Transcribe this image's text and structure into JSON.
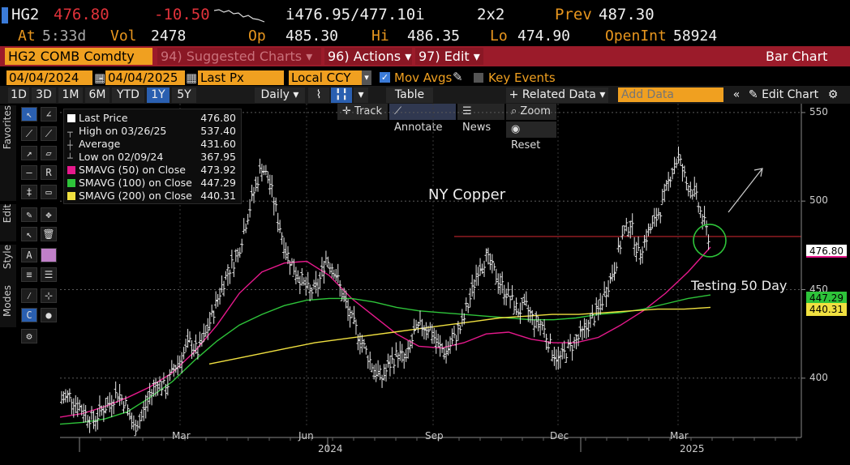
{
  "quote": {
    "ticker": "HG2",
    "last": "476.80",
    "change": "-10.50",
    "bid_ask": "i476.95/477.10i",
    "size": "2x2",
    "prev_label": "Prev",
    "prev": "487.30",
    "at_label": "At",
    "time": "5:33d",
    "vol_label": "Vol",
    "vol": "2478",
    "op_label": "Op",
    "open": "485.30",
    "hi_label": "Hi",
    "high": "486.35",
    "lo_label": "Lo",
    "low": "474.90",
    "oi_label": "OpenInt",
    "oi": "58924"
  },
  "function_bar": {
    "security": "HG2 COMB Comdty",
    "suggested": "94) Suggested Charts",
    "actions": "96) Actions",
    "edit": "97) Edit",
    "title": "Bar Chart"
  },
  "date_row": {
    "start": "04/04/2024",
    "end": "04/04/2025",
    "field": "Last Px",
    "currency": "Local CCY",
    "mov_avgs": "Mov Avgs",
    "key_events": "Key Events"
  },
  "tool_row": {
    "periods": [
      "1D",
      "3D",
      "1M",
      "6M",
      "YTD",
      "1Y",
      "5Y"
    ],
    "active_period": "1Y",
    "frequency": "Daily",
    "table": "Table",
    "related": "+ Related Data",
    "add_data_placeholder": "Add Data",
    "edit_chart": "Edit Chart"
  },
  "chart_tools": {
    "track": "Track",
    "annotate": "Annotate",
    "news": "News",
    "zoom": "Zoom",
    "reset": "Reset"
  },
  "palette_tabs": [
    "Favorites",
    "Edit",
    "Style",
    "Modes"
  ],
  "legend": [
    {
      "label": "Last Price",
      "value": "476.80",
      "color": "#ffffff"
    },
    {
      "label": "High on 03/26/25",
      "value": "537.40",
      "color": ""
    },
    {
      "label": "Average",
      "value": "431.60",
      "color": ""
    },
    {
      "label": "Low on 02/09/24",
      "value": "367.95",
      "color": ""
    },
    {
      "label": "SMAVG (50)  on Close",
      "value": "473.92",
      "color": "#e6198c"
    },
    {
      "label": "SMAVG (100)  on Close",
      "value": "447.29",
      "color": "#2ec43a"
    },
    {
      "label": "SMAVG (200)  on Close",
      "value": "440.31",
      "color": "#f0e040"
    }
  ],
  "annotations": {
    "title": "NY Copper",
    "note": "Testing 50 Day"
  },
  "chart_data": {
    "type": "bar",
    "x_labels": [
      "Mar",
      "Jun",
      "Sep",
      "Dec",
      "Mar"
    ],
    "x_year_labels": [
      "2024",
      "2025"
    ],
    "y_ticks": [
      400,
      450,
      500,
      550
    ],
    "ylim": [
      372,
      555
    ],
    "last_price": 476.8,
    "series": [
      {
        "name": "Last Price",
        "kind": "ohlc",
        "values": [
          388,
          390,
          385,
          380,
          376,
          382,
          386,
          392,
          385,
          372,
          378,
          390,
          398,
          394,
          405,
          412,
          420,
          415,
          425,
          438,
          452,
          462,
          470,
          488,
          505,
          520,
          510,
          490,
          472,
          462,
          455,
          448,
          452,
          468,
          462,
          448,
          435,
          425,
          415,
          405,
          400,
          408,
          414,
          410,
          425,
          430,
          428,
          418,
          415,
          422,
          430,
          445,
          462,
          468,
          460,
          452,
          445,
          438,
          440,
          432,
          430,
          418,
          410,
          415,
          420,
          425,
          432,
          438,
          450,
          462,
          480,
          488,
          470,
          480,
          488,
          498,
          515,
          525,
          510,
          505,
          490,
          476.8
        ]
      },
      {
        "name": "SMAVG (50)",
        "kind": "line",
        "color": "#e6198c",
        "values": [
          378,
          380,
          384,
          389,
          395,
          403,
          415,
          430,
          448,
          460,
          465,
          466,
          458,
          445,
          435,
          425,
          418,
          417,
          420,
          425,
          426,
          422,
          420,
          420,
          423,
          430,
          438,
          448,
          460,
          474
        ]
      },
      {
        "name": "SMAVG (100)",
        "kind": "line",
        "color": "#2ec43a",
        "values": [
          374,
          375,
          377,
          381,
          389,
          398,
          410,
          421,
          430,
          436,
          441,
          444,
          445,
          445,
          443,
          440,
          438,
          437,
          436,
          435,
          434,
          433,
          433,
          434,
          436,
          437,
          439,
          442,
          445,
          447
        ]
      },
      {
        "name": "SMAVG (200)",
        "kind": "line",
        "color": "#f0e040",
        "values": [
          408,
          411,
          414,
          417,
          420,
          422,
          424,
          426,
          428,
          430,
          432,
          434,
          435,
          436,
          436,
          437,
          438,
          439,
          439,
          440
        ]
      }
    ],
    "hline": 480,
    "grid": true
  },
  "price_tags": [
    {
      "value": "476.80",
      "bg": "#ffffff",
      "fg": "#000000"
    },
    {
      "value": "447.29",
      "bg": "#2ec43a",
      "fg": "#000000"
    },
    {
      "value": "440.31",
      "bg": "#f0e040",
      "fg": "#000000"
    }
  ],
  "colors": {
    "function_bar": "#9b1b2a",
    "orange": "#f0a020",
    "hline": "#c0252e"
  }
}
